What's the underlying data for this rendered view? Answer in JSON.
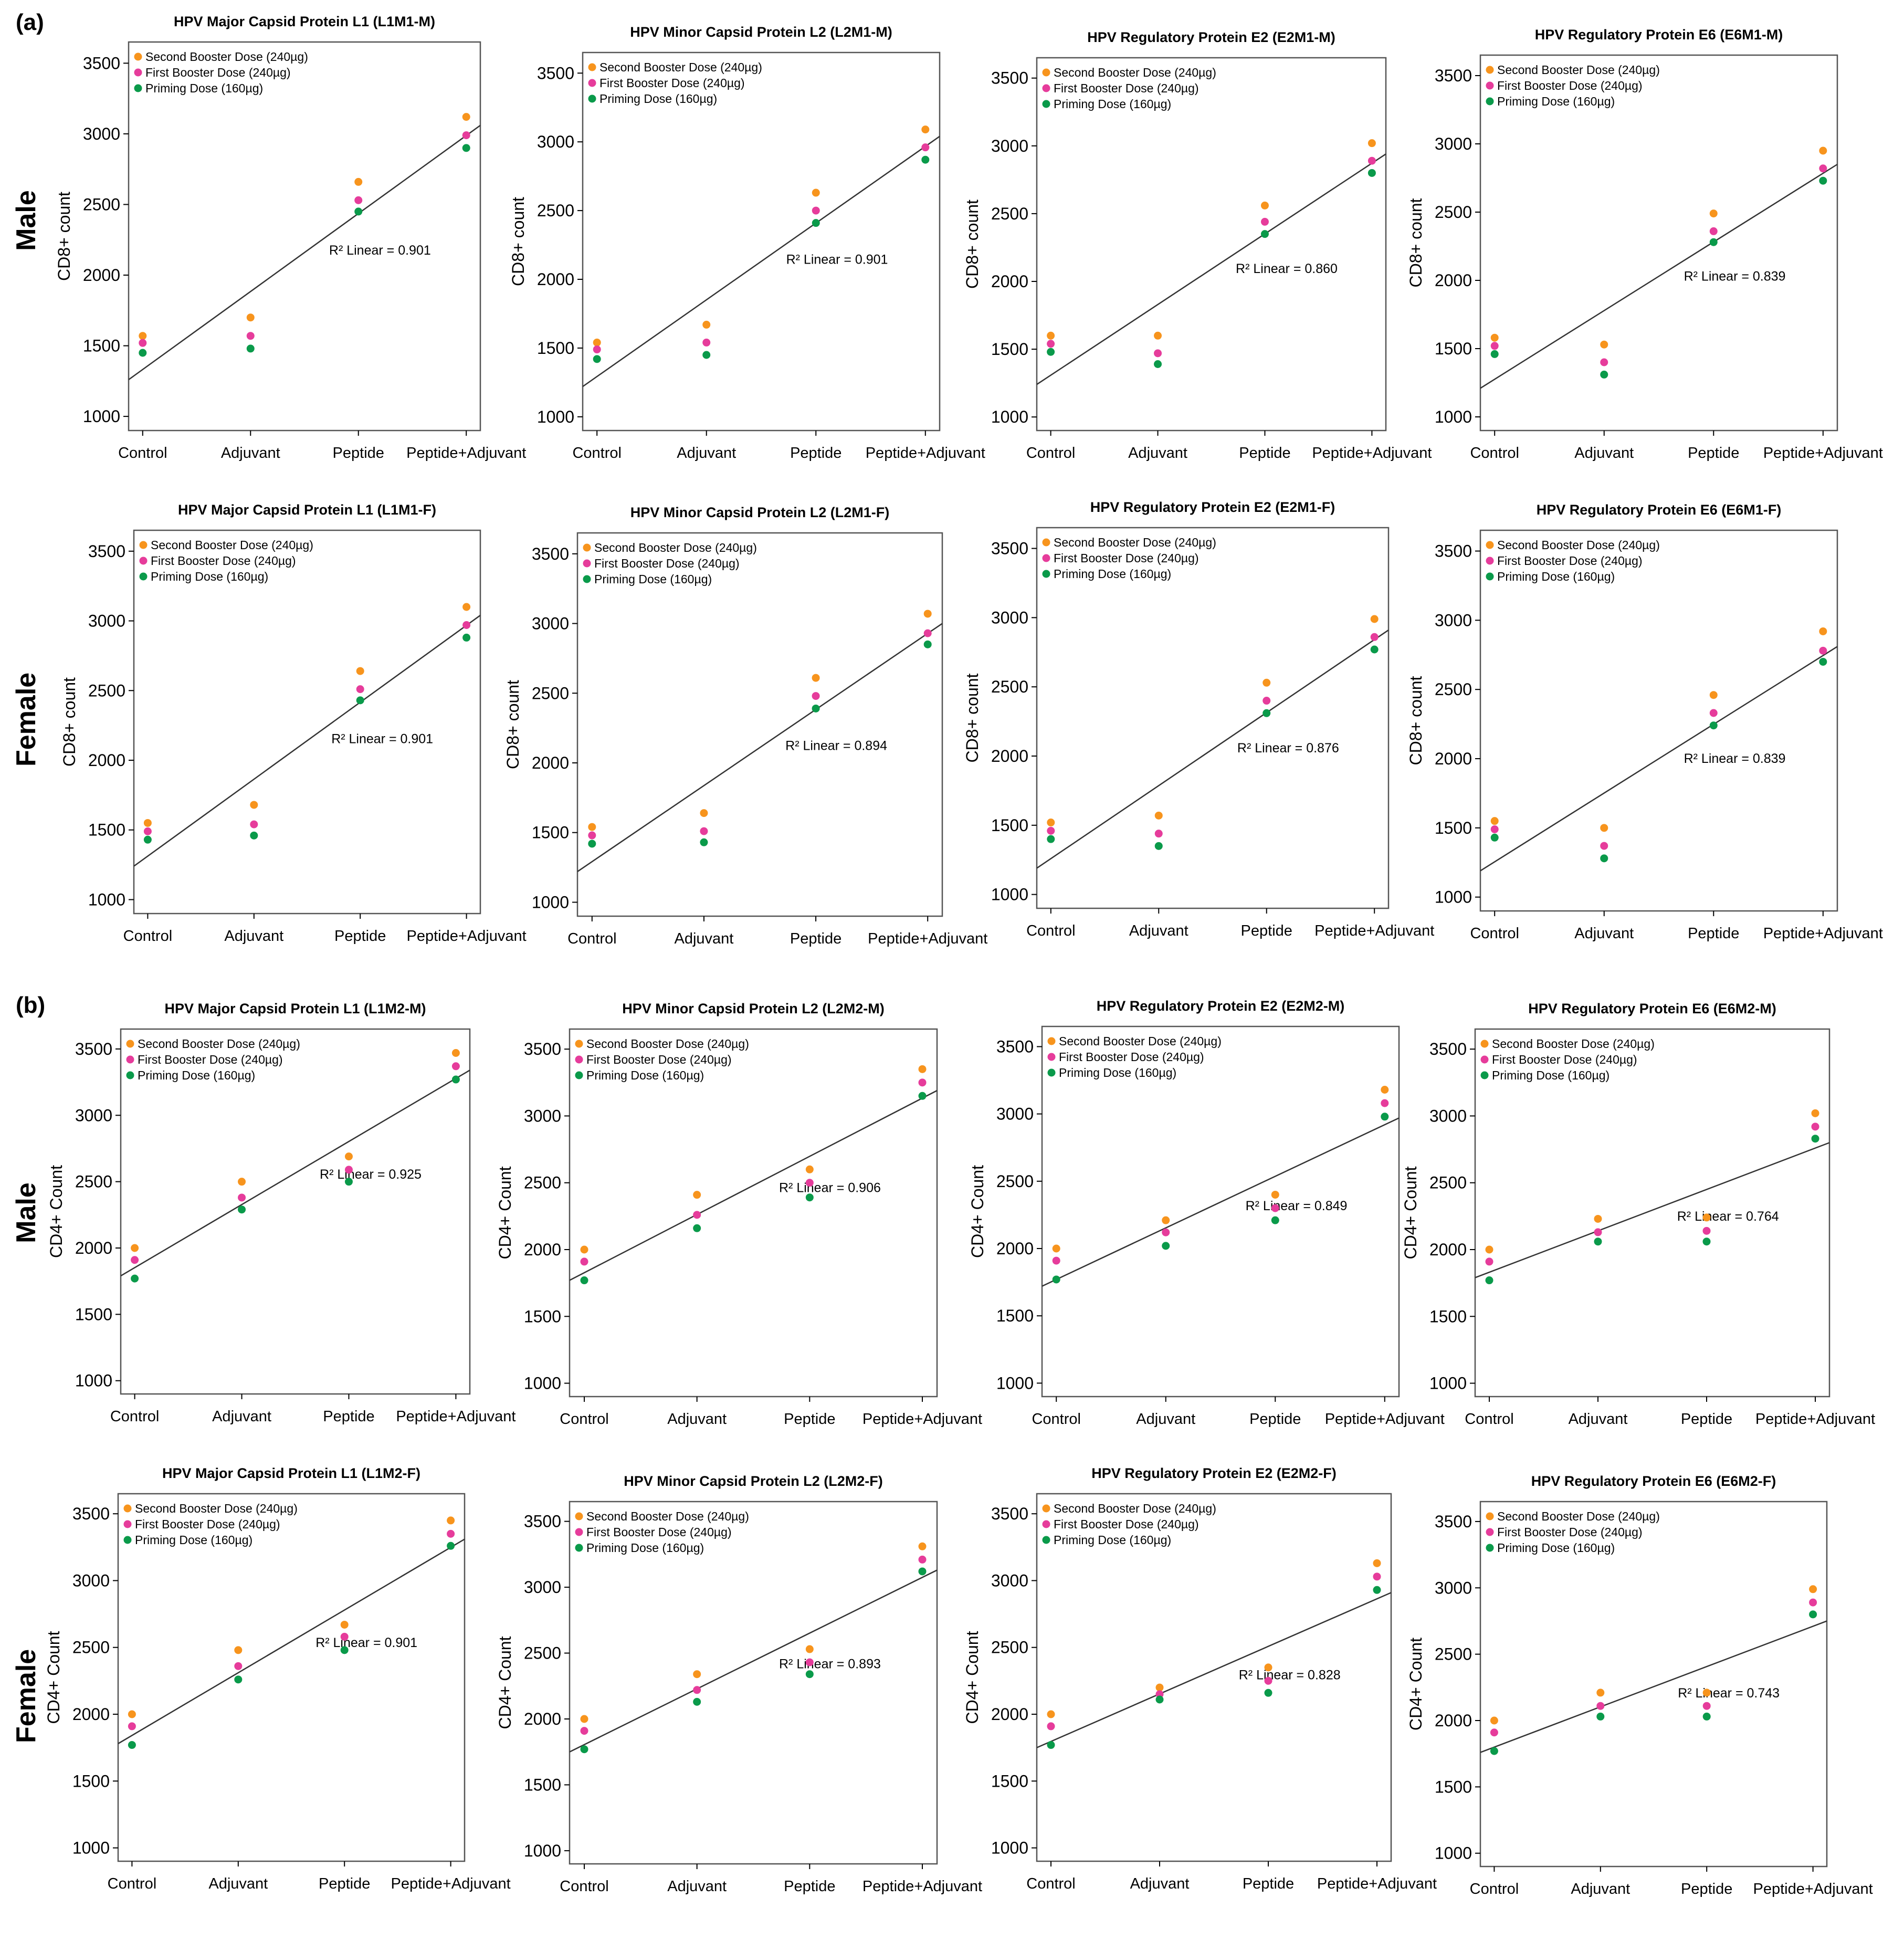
{
  "panel_labels": [
    "(a)",
    "(b)"
  ],
  "row_labels": {
    "male": "Male",
    "female": "Female"
  },
  "colors": {
    "second": "#F7941D",
    "first": "#E63C9B",
    "priming": "#0A9A4A",
    "fit_line": "#333333",
    "frame": "#555555"
  },
  "legend": [
    "Second Booster Dose (240µg)",
    "First Booster Dose (240µg)",
    "Priming Dose (160µg)"
  ],
  "chart_data": [
    {
      "id": "L1M1-M",
      "type": "scatter",
      "title": "HPV Major Capsid Protein L1 (L1M1-M)",
      "xlabel": "",
      "ylabel": "CD8+ count",
      "categories": [
        "Control",
        "Adjuvant",
        "Peptide",
        "Peptide+Adjuvant"
      ],
      "ylim": [
        900,
        3650
      ],
      "yticks": [
        1000,
        1500,
        2000,
        2500,
        3000,
        3500
      ],
      "series": [
        {
          "name": "Second Booster Dose (240µg)",
          "values": [
            1570,
            1700,
            2660,
            3120
          ]
        },
        {
          "name": "First Booster Dose (240µg)",
          "values": [
            1520,
            1570,
            2530,
            2990
          ]
        },
        {
          "name": "Priming Dose (160µg)",
          "values": [
            1450,
            1480,
            2450,
            2900
          ]
        }
      ],
      "fit": {
        "y_start": 1260,
        "y_end": 3060
      },
      "r2_label": "R² Linear = 0.901"
    },
    {
      "id": "L2M1-M",
      "type": "scatter",
      "title": "HPV Minor Capsid Protein L2 (L2M1-M)",
      "xlabel": "",
      "ylabel": "CD8+ count",
      "categories": [
        "Control",
        "Adjuvant",
        "Peptide",
        "Peptide+Adjuvant"
      ],
      "ylim": [
        900,
        3650
      ],
      "yticks": [
        1000,
        1500,
        2000,
        2500,
        3000,
        3500
      ],
      "series": [
        {
          "name": "Second Booster Dose (240µg)",
          "values": [
            1540,
            1670,
            2630,
            3090
          ]
        },
        {
          "name": "First Booster Dose (240µg)",
          "values": [
            1490,
            1540,
            2500,
            2960
          ]
        },
        {
          "name": "Priming Dose (160µg)",
          "values": [
            1420,
            1450,
            2410,
            2870
          ]
        }
      ],
      "fit": {
        "y_start": 1220,
        "y_end": 3040
      },
      "r2_label": "R² Linear = 0.901"
    },
    {
      "id": "E2M1-M",
      "type": "scatter",
      "title": "HPV Regulatory Protein E2 (E2M1-M)",
      "xlabel": "",
      "ylabel": "CD8+ count",
      "categories": [
        "Control",
        "Adjuvant",
        "Peptide",
        "Peptide+Adjuvant"
      ],
      "ylim": [
        900,
        3650
      ],
      "yticks": [
        1000,
        1500,
        2000,
        2500,
        3000,
        3500
      ],
      "series": [
        {
          "name": "Second Booster Dose (240µg)",
          "values": [
            1600,
            1600,
            2560,
            3020
          ]
        },
        {
          "name": "First Booster Dose (240µg)",
          "values": [
            1540,
            1470,
            2440,
            2890
          ]
        },
        {
          "name": "Priming Dose (160µg)",
          "values": [
            1480,
            1390,
            2350,
            2800
          ]
        }
      ],
      "fit": {
        "y_start": 1240,
        "y_end": 2940
      },
      "r2_label": "R² Linear = 0.860"
    },
    {
      "id": "E6M1-M",
      "type": "scatter",
      "title": "HPV Regulatory Protein E6 (E6M1-M)",
      "xlabel": "",
      "ylabel": "CD8+ count",
      "categories": [
        "Control",
        "Adjuvant",
        "Peptide",
        "Peptide+Adjuvant"
      ],
      "ylim": [
        900,
        3650
      ],
      "yticks": [
        1000,
        1500,
        2000,
        2500,
        3000,
        3500
      ],
      "series": [
        {
          "name": "Second Booster Dose (240µg)",
          "values": [
            1580,
            1530,
            2490,
            2950
          ]
        },
        {
          "name": "First Booster Dose (240µg)",
          "values": [
            1520,
            1400,
            2360,
            2820
          ]
        },
        {
          "name": "Priming Dose (160µg)",
          "values": [
            1460,
            1310,
            2280,
            2730
          ]
        }
      ],
      "fit": {
        "y_start": 1210,
        "y_end": 2850
      },
      "r2_label": "R² Linear = 0.839"
    },
    {
      "id": "L1M1-F",
      "type": "scatter",
      "title": "HPV Major Capsid Protein L1 (L1M1-F)",
      "xlabel": "",
      "ylabel": "CD8+ count",
      "categories": [
        "Control",
        "Adjuvant",
        "Peptide",
        "Peptide+Adjuvant"
      ],
      "ylim": [
        900,
        3650
      ],
      "yticks": [
        1000,
        1500,
        2000,
        2500,
        3000,
        3500
      ],
      "series": [
        {
          "name": "Second Booster Dose (240µg)",
          "values": [
            1550,
            1680,
            2640,
            3100
          ]
        },
        {
          "name": "First Booster Dose (240µg)",
          "values": [
            1490,
            1540,
            2510,
            2970
          ]
        },
        {
          "name": "Priming Dose (160µg)",
          "values": [
            1430,
            1460,
            2430,
            2880
          ]
        }
      ],
      "fit": {
        "y_start": 1240,
        "y_end": 3040
      },
      "r2_label": "R² Linear = 0.901"
    },
    {
      "id": "L2M1-F",
      "type": "scatter",
      "title": "HPV Minor Capsid Protein L2 (L2M1-F)",
      "xlabel": "",
      "ylabel": "CD8+ count",
      "categories": [
        "Control",
        "Adjuvant",
        "Peptide",
        "Peptide+Adjuvant"
      ],
      "ylim": [
        900,
        3650
      ],
      "yticks": [
        1000,
        1500,
        2000,
        2500,
        3000,
        3500
      ],
      "series": [
        {
          "name": "Second Booster Dose (240µg)",
          "values": [
            1540,
            1640,
            2610,
            3070
          ]
        },
        {
          "name": "First Booster Dose (240µg)",
          "values": [
            1480,
            1510,
            2480,
            2930
          ]
        },
        {
          "name": "Priming Dose (160µg)",
          "values": [
            1420,
            1430,
            2390,
            2850
          ]
        }
      ],
      "fit": {
        "y_start": 1220,
        "y_end": 3000
      },
      "r2_label": "R² Linear = 0.894"
    },
    {
      "id": "E2M1-F",
      "type": "scatter",
      "title": "HPV Regulatory Protein E2 (E2M1-F)",
      "xlabel": "",
      "ylabel": "CD8+ count",
      "categories": [
        "Control",
        "Adjuvant",
        "Peptide",
        "Peptide+Adjuvant"
      ],
      "ylim": [
        900,
        3650
      ],
      "yticks": [
        1000,
        1500,
        2000,
        2500,
        3000,
        3500
      ],
      "series": [
        {
          "name": "Second Booster Dose (240µg)",
          "values": [
            1520,
            1570,
            2530,
            2990
          ]
        },
        {
          "name": "First Booster Dose (240µg)",
          "values": [
            1460,
            1440,
            2400,
            2860
          ]
        },
        {
          "name": "Priming Dose (160µg)",
          "values": [
            1400,
            1350,
            2310,
            2770
          ]
        }
      ],
      "fit": {
        "y_start": 1190,
        "y_end": 2910
      },
      "r2_label": "R² Linear = 0.876"
    },
    {
      "id": "E6M1-F",
      "type": "scatter",
      "title": "HPV Regulatory Protein E6 (E6M1-F)",
      "xlabel": "",
      "ylabel": "CD8+ count",
      "categories": [
        "Control",
        "Adjuvant",
        "Peptide",
        "Peptide+Adjuvant"
      ],
      "ylim": [
        900,
        3650
      ],
      "yticks": [
        1000,
        1500,
        2000,
        2500,
        3000,
        3500
      ],
      "series": [
        {
          "name": "Second Booster Dose (240µg)",
          "values": [
            1550,
            1500,
            2460,
            2920
          ]
        },
        {
          "name": "First Booster Dose (240µg)",
          "values": [
            1490,
            1370,
            2330,
            2780
          ]
        },
        {
          "name": "Priming Dose (160µg)",
          "values": [
            1430,
            1280,
            2240,
            2700
          ]
        }
      ],
      "fit": {
        "y_start": 1190,
        "y_end": 2810
      },
      "r2_label": "R² Linear = 0.839"
    },
    {
      "id": "L1M2-M",
      "type": "scatter",
      "title": "HPV Major Capsid Protein L1 (L1M2-M)",
      "xlabel": "",
      "ylabel": "CD4+ Count",
      "categories": [
        "Control",
        "Adjuvant",
        "Peptide",
        "Peptide+Adjuvant"
      ],
      "ylim": [
        900,
        3650
      ],
      "yticks": [
        1000,
        1500,
        2000,
        2500,
        3000,
        3500
      ],
      "series": [
        {
          "name": "Second Booster Dose (240µg)",
          "values": [
            2000,
            2500,
            2690,
            3470
          ]
        },
        {
          "name": "First Booster Dose (240µg)",
          "values": [
            1910,
            2380,
            2590,
            3370
          ]
        },
        {
          "name": "Priming Dose (160µg)",
          "values": [
            1770,
            2290,
            2500,
            3270
          ]
        }
      ],
      "fit": {
        "y_start": 1790,
        "y_end": 3340
      },
      "r2_label": "R² Linear = 0.925"
    },
    {
      "id": "L2M2-M",
      "type": "scatter",
      "title": "HPV Minor Capsid Protein L2 (L2M2-M)",
      "xlabel": "",
      "ylabel": "CD4+ Count",
      "categories": [
        "Control",
        "Adjuvant",
        "Peptide",
        "Peptide+Adjuvant"
      ],
      "ylim": [
        900,
        3650
      ],
      "yticks": [
        1000,
        1500,
        2000,
        2500,
        3000,
        3500
      ],
      "series": [
        {
          "name": "Second Booster Dose (240µg)",
          "values": [
            2000,
            2410,
            2600,
            3350
          ]
        },
        {
          "name": "First Booster Dose (240µg)",
          "values": [
            1910,
            2260,
            2500,
            3250
          ]
        },
        {
          "name": "Priming Dose (160µg)",
          "values": [
            1770,
            2160,
            2390,
            3150
          ]
        }
      ],
      "fit": {
        "y_start": 1770,
        "y_end": 3190
      },
      "r2_label": "R² Linear = 0.906"
    },
    {
      "id": "E2M2-M",
      "type": "scatter",
      "title": "HPV Regulatory Protein E2 (E2M2-M)",
      "xlabel": "",
      "ylabel": "CD4+ Count",
      "categories": [
        "Control",
        "Adjuvant",
        "Peptide",
        "Peptide+Adjuvant"
      ],
      "ylim": [
        900,
        3650
      ],
      "yticks": [
        1000,
        1500,
        2000,
        2500,
        3000,
        3500
      ],
      "series": [
        {
          "name": "Second Booster Dose (240µg)",
          "values": [
            2000,
            2210,
            2400,
            3180
          ]
        },
        {
          "name": "First Booster Dose (240µg)",
          "values": [
            1910,
            2120,
            2300,
            3080
          ]
        },
        {
          "name": "Priming Dose (160µg)",
          "values": [
            1770,
            2020,
            2210,
            2980
          ]
        }
      ],
      "fit": {
        "y_start": 1720,
        "y_end": 2970
      },
      "r2_label": "R² Linear = 0.849"
    },
    {
      "id": "E6M2-M",
      "type": "scatter",
      "title": "HPV Regulatory Protein E6 (E6M2-M)",
      "xlabel": "",
      "ylabel": "CD4+ Count",
      "categories": [
        "Control",
        "Adjuvant",
        "Peptide",
        "Peptide+Adjuvant"
      ],
      "ylim": [
        900,
        3650
      ],
      "yticks": [
        1000,
        1500,
        2000,
        2500,
        3000,
        3500
      ],
      "series": [
        {
          "name": "Second Booster Dose (240µg)",
          "values": [
            2000,
            2230,
            2240,
            3020
          ]
        },
        {
          "name": "First Booster Dose (240µg)",
          "values": [
            1910,
            2130,
            2140,
            2920
          ]
        },
        {
          "name": "Priming Dose (160µg)",
          "values": [
            1770,
            2060,
            2060,
            2830
          ]
        }
      ],
      "fit": {
        "y_start": 1790,
        "y_end": 2800
      },
      "r2_label": "R² Linear = 0.764"
    },
    {
      "id": "L1M2-F",
      "type": "scatter",
      "title": "HPV Major Capsid Protein L1 (L1M2-F)",
      "xlabel": "",
      "ylabel": "CD4+ Count",
      "categories": [
        "Control",
        "Adjuvant",
        "Peptide",
        "Peptide+Adjuvant"
      ],
      "ylim": [
        900,
        3650
      ],
      "yticks": [
        1000,
        1500,
        2000,
        2500,
        3000,
        3500
      ],
      "series": [
        {
          "name": "Second Booster Dose (240µg)",
          "values": [
            2000,
            2480,
            2670,
            3450
          ]
        },
        {
          "name": "First Booster Dose (240µg)",
          "values": [
            1910,
            2360,
            2580,
            3350
          ]
        },
        {
          "name": "Priming Dose (160µg)",
          "values": [
            1770,
            2260,
            2480,
            3260
          ]
        }
      ],
      "fit": {
        "y_start": 1780,
        "y_end": 3310
      },
      "r2_label": "R² Linear = 0.901"
    },
    {
      "id": "L2M2-F",
      "type": "scatter",
      "title": "HPV Minor Capsid Protein L2 (L2M2-F)",
      "xlabel": "",
      "ylabel": "CD4+ Count",
      "categories": [
        "Control",
        "Adjuvant",
        "Peptide",
        "Peptide+Adjuvant"
      ],
      "ylim": [
        900,
        3650
      ],
      "yticks": [
        1000,
        1500,
        2000,
        2500,
        3000,
        3500
      ],
      "series": [
        {
          "name": "Second Booster Dose (240µg)",
          "values": [
            2000,
            2340,
            2530,
            3310
          ]
        },
        {
          "name": "First Booster Dose (240µg)",
          "values": [
            1910,
            2220,
            2430,
            3210
          ]
        },
        {
          "name": "Priming Dose (160µg)",
          "values": [
            1770,
            2130,
            2340,
            3120
          ]
        }
      ],
      "fit": {
        "y_start": 1750,
        "y_end": 3130
      },
      "r2_label": "R² Linear = 0.893"
    },
    {
      "id": "E2M2-F",
      "type": "scatter",
      "title": "HPV Regulatory Protein E2 (E2M2-F)",
      "xlabel": "",
      "ylabel": "CD4+ Count",
      "categories": [
        "Control",
        "Adjuvant",
        "Peptide",
        "Peptide+Adjuvant"
      ],
      "ylim": [
        900,
        3650
      ],
      "yticks": [
        1000,
        1500,
        2000,
        2500,
        3000,
        3500
      ],
      "series": [
        {
          "name": "Second Booster Dose (240µg)",
          "values": [
            2000,
            2200,
            2350,
            3130
          ]
        },
        {
          "name": "First Booster Dose (240µg)",
          "values": [
            1910,
            2150,
            2250,
            3030
          ]
        },
        {
          "name": "Priming Dose (160µg)",
          "values": [
            1770,
            2110,
            2160,
            2930
          ]
        }
      ],
      "fit": {
        "y_start": 1750,
        "y_end": 2910
      },
      "r2_label": "R² Linear = 0.828"
    },
    {
      "id": "E6M2-F",
      "type": "scatter",
      "title": "HPV Regulatory Protein E6 (E6M2-F)",
      "xlabel": "",
      "ylabel": "CD4+ Count",
      "categories": [
        "Control",
        "Adjuvant",
        "Peptide",
        "Peptide+Adjuvant"
      ],
      "ylim": [
        900,
        3650
      ],
      "yticks": [
        1000,
        1500,
        2000,
        2500,
        3000,
        3500
      ],
      "series": [
        {
          "name": "Second Booster Dose (240µg)",
          "values": [
            2000,
            2210,
            2210,
            2990
          ]
        },
        {
          "name": "First Booster Dose (240µg)",
          "values": [
            1910,
            2110,
            2110,
            2890
          ]
        },
        {
          "name": "Priming Dose (160µg)",
          "values": [
            1770,
            2030,
            2030,
            2800
          ]
        }
      ],
      "fit": {
        "y_start": 1760,
        "y_end": 2750
      },
      "r2_label": "R² Linear = 0.743"
    }
  ]
}
